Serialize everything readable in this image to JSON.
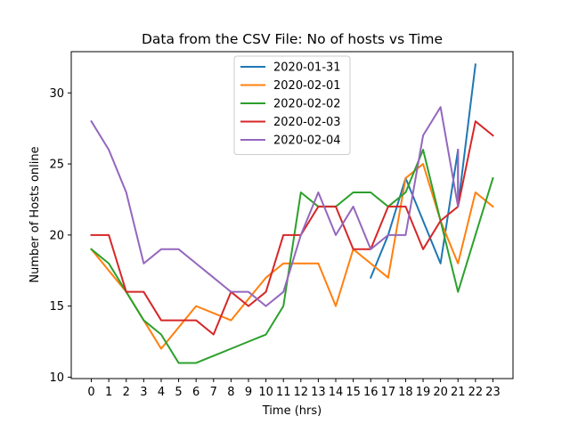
{
  "chart_data": {
    "type": "line",
    "title": "Data from the CSV File: No of hosts vs Time",
    "xlabel": "Time (hrs)",
    "ylabel": "Number of Hosts online",
    "xlim": [
      -1.15,
      24.15
    ],
    "ylim": [
      9.9,
      32.9
    ],
    "xticks": [
      0,
      1,
      2,
      3,
      4,
      5,
      6,
      7,
      8,
      9,
      10,
      11,
      12,
      13,
      14,
      15,
      16,
      17,
      18,
      19,
      20,
      21,
      22,
      23
    ],
    "yticks": [
      10,
      15,
      20,
      25,
      30
    ],
    "grid": false,
    "legend_position": "top-center",
    "series": [
      {
        "name": "2020-01-31",
        "color": "#1f77b4",
        "points": [
          [
            16,
            17
          ],
          [
            17,
            20
          ],
          [
            18,
            24
          ],
          [
            19,
            21
          ],
          [
            20,
            18
          ],
          [
            21,
            26
          ],
          [
            21,
            22
          ],
          [
            22,
            32
          ]
        ]
      },
      {
        "name": "2020-02-01",
        "color": "#ff7f0e",
        "points": [
          [
            0,
            19
          ],
          [
            1,
            17.5
          ],
          [
            2,
            16
          ],
          [
            3,
            14
          ],
          [
            4,
            12
          ],
          [
            5,
            13.5
          ],
          [
            6,
            15
          ],
          [
            7,
            14.5
          ],
          [
            8,
            14
          ],
          [
            9,
            15.5
          ],
          [
            10,
            17
          ],
          [
            11,
            18
          ],
          [
            12,
            18
          ],
          [
            13,
            18
          ],
          [
            14,
            15
          ],
          [
            15,
            19
          ],
          [
            16,
            18
          ],
          [
            17,
            17
          ],
          [
            18,
            24
          ],
          [
            19,
            25
          ],
          [
            20,
            21
          ],
          [
            21,
            18
          ],
          [
            22,
            23
          ],
          [
            23,
            22
          ]
        ]
      },
      {
        "name": "2020-02-02",
        "color": "#2ca02c",
        "points": [
          [
            0,
            19
          ],
          [
            1,
            18
          ],
          [
            2,
            16
          ],
          [
            3,
            14
          ],
          [
            4,
            13
          ],
          [
            5,
            11
          ],
          [
            6,
            11
          ],
          [
            7,
            11.5
          ],
          [
            8,
            12
          ],
          [
            9,
            12.5
          ],
          [
            10,
            13
          ],
          [
            11,
            15
          ],
          [
            12,
            23
          ],
          [
            13,
            22
          ],
          [
            14,
            22
          ],
          [
            15,
            23
          ],
          [
            16,
            23
          ],
          [
            17,
            22
          ],
          [
            18,
            23
          ],
          [
            19,
            26
          ],
          [
            20,
            21
          ],
          [
            21,
            16
          ],
          [
            22,
            20
          ],
          [
            23,
            24
          ]
        ]
      },
      {
        "name": "2020-02-03",
        "color": "#d62728",
        "points": [
          [
            0,
            20
          ],
          [
            1,
            20
          ],
          [
            2,
            16
          ],
          [
            3,
            16
          ],
          [
            4,
            14
          ],
          [
            5,
            14
          ],
          [
            6,
            14
          ],
          [
            7,
            13
          ],
          [
            8,
            16
          ],
          [
            9,
            15
          ],
          [
            10,
            16
          ],
          [
            11,
            20
          ],
          [
            12,
            20
          ],
          [
            13,
            22
          ],
          [
            14,
            22
          ],
          [
            15,
            19
          ],
          [
            16,
            19
          ],
          [
            17,
            22
          ],
          [
            18,
            22
          ],
          [
            19,
            19
          ],
          [
            20,
            21
          ],
          [
            21,
            22
          ],
          [
            22,
            28
          ],
          [
            23,
            27
          ]
        ]
      },
      {
        "name": "2020-02-04",
        "color": "#9467bd",
        "points": [
          [
            0,
            28
          ],
          [
            1,
            26
          ],
          [
            2,
            23
          ],
          [
            3,
            18
          ],
          [
            4,
            19
          ],
          [
            5,
            19
          ],
          [
            6,
            18
          ],
          [
            7,
            17
          ],
          [
            8,
            16
          ],
          [
            9,
            16
          ],
          [
            10,
            15
          ],
          [
            11,
            16
          ],
          [
            12,
            20
          ],
          [
            13,
            23
          ],
          [
            14,
            20
          ],
          [
            15,
            22
          ],
          [
            16,
            19
          ],
          [
            17,
            20
          ],
          [
            18,
            20
          ],
          [
            19,
            27
          ],
          [
            20,
            29
          ],
          [
            21,
            22
          ],
          [
            21,
            26
          ]
        ]
      }
    ]
  }
}
